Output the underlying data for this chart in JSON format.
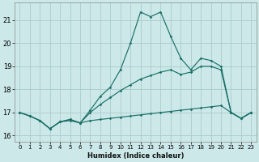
{
  "xlabel": "Humidex (Indice chaleur)",
  "background_color": "#cce8e8",
  "grid_color": "#aacccc",
  "line_color": "#1a7068",
  "xlim": [
    -0.5,
    23.5
  ],
  "ylim": [
    15.75,
    21.75
  ],
  "yticks": [
    16,
    17,
    18,
    19,
    20,
    21
  ],
  "xticks": [
    0,
    1,
    2,
    3,
    4,
    5,
    6,
    7,
    8,
    9,
    10,
    11,
    12,
    13,
    14,
    15,
    16,
    17,
    18,
    19,
    20,
    21,
    22,
    23
  ],
  "series": [
    {
      "x": [
        0,
        1,
        2,
        3,
        4,
        5,
        6,
        7,
        8,
        9,
        10,
        11,
        12,
        13,
        14,
        15,
        16,
        17,
        18,
        19,
        20,
        21,
        22,
        23
      ],
      "y": [
        17.0,
        16.85,
        16.65,
        16.3,
        16.6,
        16.65,
        16.55,
        16.65,
        16.7,
        16.75,
        16.8,
        16.85,
        16.9,
        16.95,
        17.0,
        17.05,
        17.1,
        17.15,
        17.2,
        17.25,
        17.3,
        17.0,
        16.75,
        17.0
      ]
    },
    {
      "x": [
        0,
        1,
        2,
        3,
        4,
        5,
        6,
        7,
        8,
        9,
        10,
        11,
        12,
        13,
        14,
        15,
        16,
        17,
        18,
        19,
        20,
        21,
        22,
        23
      ],
      "y": [
        17.0,
        16.85,
        16.65,
        16.3,
        16.6,
        16.7,
        16.55,
        17.0,
        17.35,
        17.65,
        17.95,
        18.2,
        18.45,
        18.6,
        18.75,
        18.85,
        18.65,
        18.75,
        19.0,
        19.0,
        18.85,
        17.0,
        16.75,
        17.0
      ]
    },
    {
      "x": [
        0,
        1,
        2,
        3,
        4,
        5,
        6,
        7,
        8,
        9,
        10,
        11,
        12,
        13,
        14,
        15,
        16,
        17,
        18,
        19,
        20,
        21,
        22,
        23
      ],
      "y": [
        17.0,
        16.85,
        16.65,
        16.3,
        16.6,
        16.7,
        16.55,
        17.1,
        17.7,
        18.1,
        18.85,
        20.0,
        21.35,
        21.15,
        21.35,
        20.3,
        19.35,
        18.85,
        19.35,
        19.25,
        19.0,
        17.0,
        16.75,
        17.0
      ]
    }
  ]
}
